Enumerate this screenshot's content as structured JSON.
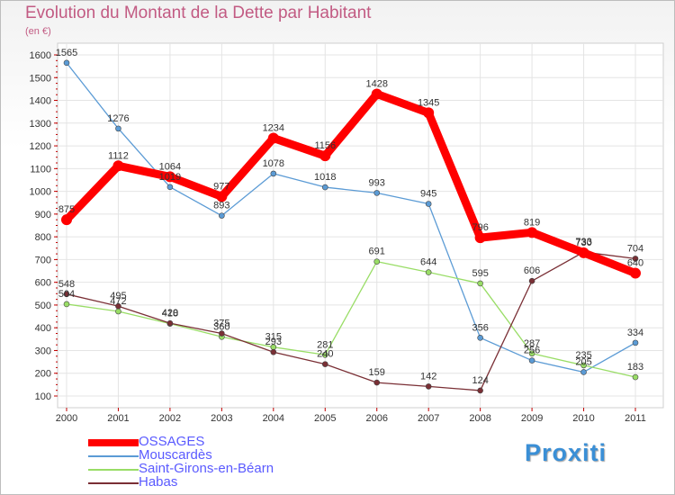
{
  "chart_data": {
    "type": "line",
    "title": "Evolution du Montant de la Dette par Habitant",
    "subtitle": "(en €)",
    "categories": [
      "2000",
      "2001",
      "2002",
      "2003",
      "2004",
      "2005",
      "2006",
      "2007",
      "2008",
      "2009",
      "2010",
      "2011"
    ],
    "ylim": [
      100,
      1600
    ],
    "yticks": [
      100,
      200,
      300,
      400,
      500,
      600,
      700,
      800,
      900,
      1000,
      1100,
      1200,
      1300,
      1400,
      1500,
      1600
    ],
    "grid": true,
    "legend_position": "bottom-left",
    "series": [
      {
        "name": "OSSAGES",
        "color": "#ff0000",
        "values": [
          875,
          1112,
          1064,
          977,
          1234,
          1156,
          1428,
          1345,
          796,
          819,
          730,
          640
        ]
      },
      {
        "name": "Mouscardès",
        "color": "#5b9bd5",
        "values": [
          1565,
          1276,
          1019,
          893,
          1078,
          1018,
          993,
          945,
          356,
          256,
          205,
          334
        ]
      },
      {
        "name": "Saint-Girons-en-Béarn",
        "color": "#99dd66",
        "values": [
          504,
          472,
          418,
          360,
          315,
          281,
          691,
          644,
          595,
          287,
          235,
          183
        ]
      },
      {
        "name": "Habas",
        "color": "#7a2f35",
        "values": [
          548,
          495,
          420,
          375,
          293,
          240,
          159,
          142,
          124,
          606,
          733,
          704
        ]
      }
    ]
  },
  "logo_text": "Proxiti"
}
